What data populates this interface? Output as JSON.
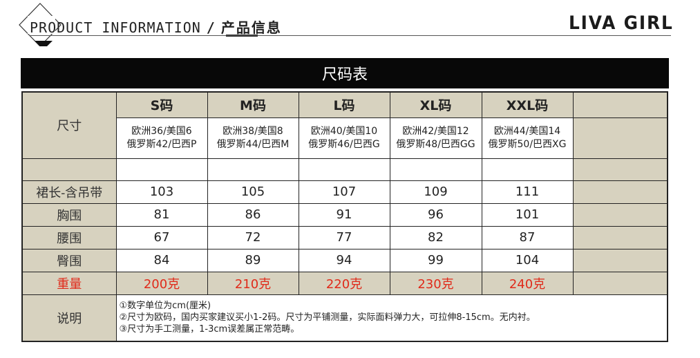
{
  "header": {
    "title_en": "PRODUCT INFORMATION",
    "separator": "/",
    "title_cn": "产品信息",
    "brand": "LIVA GIRL"
  },
  "banner": {
    "title": "尺码表"
  },
  "table": {
    "size_label": "尺寸",
    "sizes": [
      {
        "name": "S码",
        "conv1": "欧洲36/美国6",
        "conv2": "俄罗斯42/巴西P"
      },
      {
        "name": "M码",
        "conv1": "欧洲38/美国8",
        "conv2": "俄罗斯44/巴西M"
      },
      {
        "name": "L码",
        "conv1": "欧洲40/美国10",
        "conv2": "俄罗斯46/巴西G"
      },
      {
        "name": "XL码",
        "conv1": "欧洲42/美国12",
        "conv2": "俄罗斯48/巴西GG"
      },
      {
        "name": "XXL码",
        "conv1": "欧洲44/美国14",
        "conv2": "俄罗斯50/巴西XG"
      }
    ],
    "rows": [
      {
        "label": "裙长-含吊带",
        "values": [
          "103",
          "105",
          "107",
          "109",
          "111"
        ]
      },
      {
        "label": "胸围",
        "values": [
          "81",
          "86",
          "91",
          "96",
          "101"
        ]
      },
      {
        "label": "腰围",
        "values": [
          "67",
          "72",
          "77",
          "82",
          "87"
        ]
      },
      {
        "label": "臀围",
        "values": [
          "84",
          "89",
          "94",
          "99",
          "104"
        ]
      }
    ],
    "weight": {
      "label": "重量",
      "values": [
        "200克",
        "210克",
        "220克",
        "230克",
        "240克"
      ]
    },
    "notes": {
      "label": "说明",
      "lines": [
        "①数字单位为cm(厘米)",
        "②尺寸为欧码，国内买家建议买小1-2码。尺寸为平铺测量，实际面料弹力大，可拉伸8-15cm。无内衬。",
        "③尺寸为手工测量，1-3cm误差属正常范畴。"
      ]
    }
  },
  "colors": {
    "label_bg": "#d7d2bf",
    "banner_bg": "#080808",
    "weight_red": "#e02a1a"
  }
}
